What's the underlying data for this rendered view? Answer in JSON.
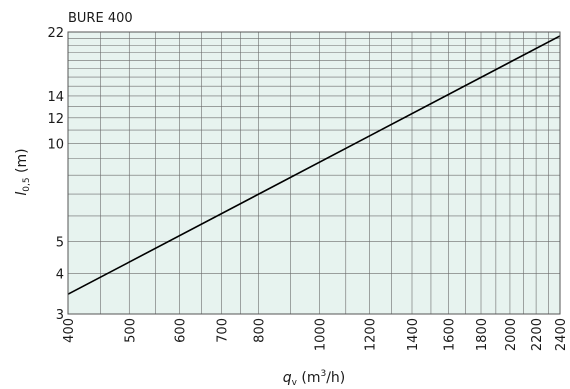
{
  "chart_data": {
    "type": "line",
    "title": "BURE 400",
    "x_scale": "log",
    "y_scale": "log",
    "xlim": [
      400,
      2400
    ],
    "ylim": [
      3,
      22
    ],
    "x_ticks": [
      400,
      500,
      600,
      700,
      800,
      1000,
      1200,
      1400,
      1600,
      1800,
      2000,
      2200,
      2400
    ],
    "x_tick_labels": [
      "400",
      "500",
      "600",
      "700",
      "800",
      "1000",
      "1200",
      "1400",
      "1600",
      "1800",
      "2000",
      "2200",
      "2400"
    ],
    "y_ticks": [
      3,
      4,
      5,
      10,
      12,
      14,
      22
    ],
    "y_tick_labels": [
      "3",
      "4",
      "5",
      "10",
      "12",
      "14",
      "22"
    ],
    "x_minor_grid": [
      450,
      550,
      650,
      750,
      900,
      1100,
      1300,
      1500,
      1700,
      1900,
      2100,
      2300
    ],
    "y_minor_grid": [
      6,
      7,
      8,
      9,
      11,
      13,
      15,
      16,
      17,
      18,
      19,
      20,
      21
    ],
    "xlabel": {
      "var": "q",
      "sub": "v",
      "unit_pre": " (m",
      "sup": "3",
      "unit_post": "/h)"
    },
    "ylabel": {
      "var": "l",
      "sub": "0,5",
      "unit": " (m)"
    },
    "grid": true,
    "colors": {
      "plot_bg": "#e7f3ef",
      "grid": "#6b6b6b",
      "line": "#000000",
      "text": "#1a1a1a"
    },
    "series": [
      {
        "x": [
          400,
          2400
        ],
        "y": [
          3.45,
          21.4
        ]
      }
    ]
  }
}
